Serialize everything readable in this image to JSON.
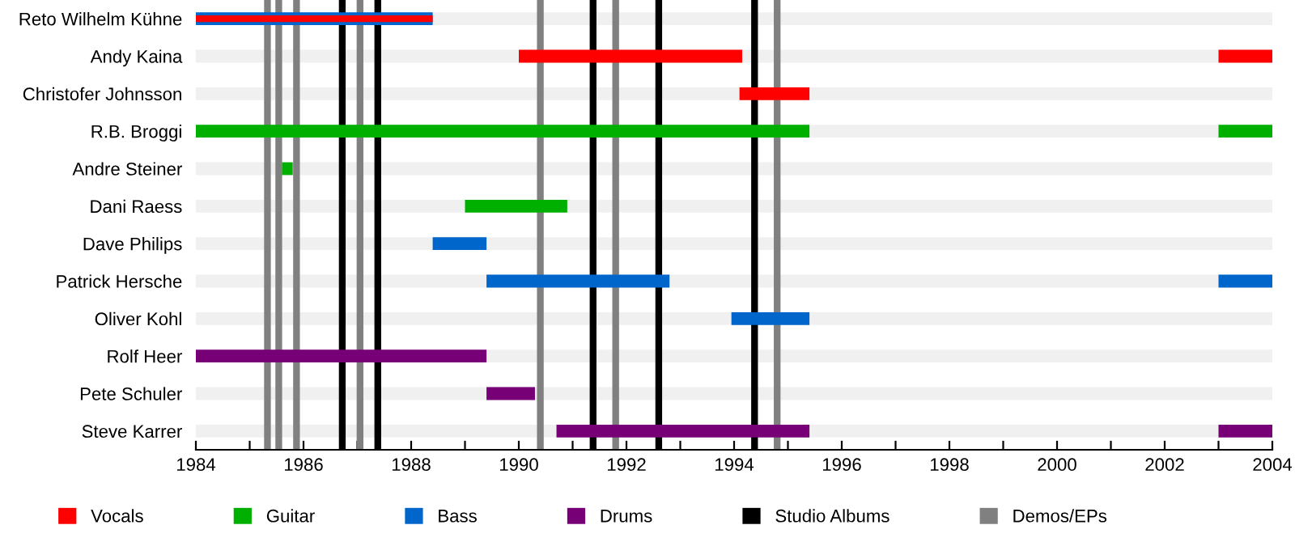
{
  "chart_data": {
    "type": "bar",
    "orientation": "horizontal",
    "categories": [
      "Reto Wilhelm Kühne",
      "Andy Kaina",
      "Christofer Johnsson",
      "R.B. Broggi",
      "Andre Steiner",
      "Dani Raess",
      "Dave Philips",
      "Patrick Hersche",
      "Oliver Kohl",
      "Rolf Heer",
      "Pete Schuler",
      "Steve Karrer"
    ],
    "series": [
      {
        "name": "Vocals",
        "color": "#ff0000",
        "base": [
          1984,
          1990.0,
          1994.1,
          null,
          null,
          null,
          null,
          null,
          null,
          null,
          null,
          null
        ],
        "values": [
          4.4,
          4.15,
          1.3,
          null,
          null,
          null,
          null,
          null,
          null,
          null,
          null,
          null
        ]
      },
      {
        "name": "Guitar",
        "color": "#00b000",
        "base": [
          null,
          null,
          null,
          1984,
          1985.6,
          1989.0,
          null,
          null,
          null,
          null,
          null,
          null
        ],
        "values": [
          null,
          null,
          null,
          11.4,
          0.2,
          1.9,
          null,
          null,
          null,
          null,
          null,
          null
        ]
      },
      {
        "name": "Bass",
        "color": "#0066cc",
        "base": [
          1984,
          null,
          null,
          null,
          null,
          null,
          1988.4,
          1989.4,
          1993.95,
          null,
          null,
          null
        ],
        "values": [
          4.4,
          null,
          null,
          null,
          null,
          null,
          1.0,
          3.4,
          1.45,
          null,
          null,
          null
        ]
      },
      {
        "name": "Drums",
        "color": "#770077",
        "base": [
          null,
          null,
          null,
          null,
          null,
          null,
          null,
          null,
          null,
          1984,
          1989.4,
          1990.7
        ],
        "values": [
          null,
          null,
          null,
          null,
          null,
          null,
          null,
          null,
          null,
          5.4,
          0.9,
          4.7
        ]
      },
      {
        "color": "#ff0000",
        "base": [
          null,
          2003,
          null,
          null,
          null,
          null,
          null,
          null,
          null,
          null,
          null,
          null
        ],
        "values": [
          null,
          1,
          null,
          null,
          null,
          null,
          null,
          null,
          null,
          null,
          null,
          null
        ]
      },
      {
        "color": "#00b000",
        "base": [
          null,
          null,
          null,
          2003,
          null,
          null,
          null,
          null,
          null,
          null,
          null,
          null
        ],
        "values": [
          null,
          null,
          null,
          1,
          null,
          null,
          null,
          null,
          null,
          null,
          null,
          null
        ]
      },
      {
        "color": "#0066cc",
        "base": [
          null,
          null,
          null,
          null,
          null,
          null,
          null,
          2003,
          null,
          null,
          null,
          null
        ],
        "values": [
          null,
          null,
          null,
          null,
          null,
          null,
          null,
          1,
          null,
          null,
          null,
          null
        ]
      },
      {
        "color": "#770077",
        "base": [
          null,
          null,
          null,
          null,
          null,
          null,
          null,
          null,
          null,
          null,
          null,
          2003
        ],
        "values": [
          null,
          null,
          null,
          null,
          null,
          null,
          null,
          null,
          null,
          null,
          null,
          1
        ]
      }
    ],
    "xlim": [
      1984,
      2004
    ],
    "xticks": [
      1984,
      {
        "value": 1985,
        "label": null
      },
      1986,
      {
        "value": 1987,
        "label": null
      },
      1988,
      {
        "value": 1989,
        "label": null
      },
      1990,
      {
        "value": 1991,
        "label": null
      },
      1992,
      {
        "value": 1993,
        "label": null
      },
      1994,
      {
        "value": 1995,
        "label": null
      },
      1996,
      {
        "value": 1997,
        "label": null
      },
      1998,
      {
        "value": 1999,
        "label": null
      },
      2000,
      {
        "value": 2001,
        "label": null
      },
      2002,
      {
        "value": 2003,
        "label": null
      },
      2004
    ],
    "ref_lines": [
      {
        "axis": "x",
        "value": 1986.72,
        "label": "Studio Albums",
        "color": "#000000"
      },
      {
        "axis": "x",
        "value": 1987.38,
        "color": "#000000"
      },
      {
        "axis": "x",
        "value": 1991.38,
        "color": "#000000"
      },
      {
        "axis": "x",
        "value": 1992.6,
        "color": "#000000"
      },
      {
        "axis": "x",
        "value": 1994.38,
        "color": "#000000"
      },
      {
        "axis": "x",
        "value": 1985.33,
        "label": "Demos/EPs",
        "color": "#808080"
      },
      {
        "axis": "x",
        "value": 1985.54,
        "color": "#808080"
      },
      {
        "axis": "x",
        "value": 1985.87,
        "color": "#808080"
      },
      {
        "axis": "x",
        "value": 1987.05,
        "color": "#808080"
      },
      {
        "axis": "x",
        "value": 1990.4,
        "color": "#808080"
      },
      {
        "axis": "x",
        "value": 1991.8,
        "color": "#808080"
      },
      {
        "axis": "x",
        "value": 1994.8,
        "color": "#808080"
      }
    ],
    "grid": false,
    "legend": "bottom"
  }
}
